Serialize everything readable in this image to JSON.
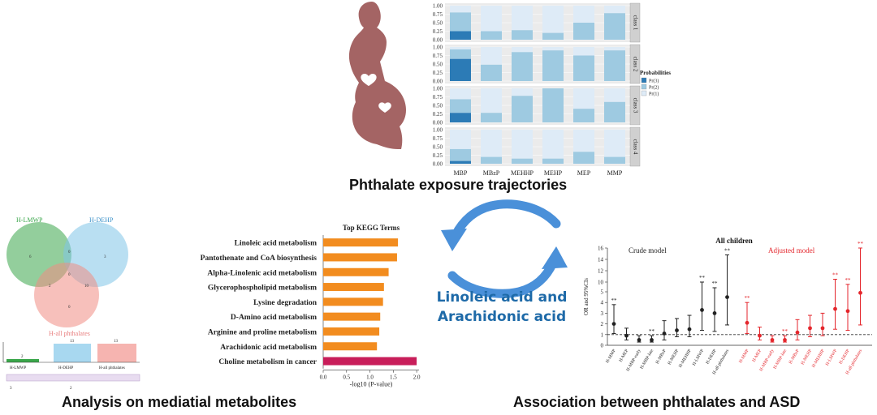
{
  "captions": {
    "top": "Phthalate exposure trajectories",
    "bottom_left": "Analysis on mediatial metabolites",
    "bottom_right": "Association between phthalates and ASD",
    "center": [
      "Linoleic acid and",
      "Arachidonic acid"
    ]
  },
  "colors": {
    "pregnant": "#a46464",
    "pr3": "#2c7bb6",
    "pr2": "#9ecae1",
    "pr1": "#deebf7",
    "kegg_bar": "#f28c1f",
    "kegg_highlight": "#c81e5a",
    "arrow": "#4a90d9",
    "crude": "#222222",
    "adjusted": "#e4262c",
    "venn_green": "#3aa64a",
    "venn_blue": "#7fc4e8",
    "venn_red": "#f08c84"
  },
  "trajectory_chart": {
    "type": "bar",
    "categories": [
      "MBP",
      "MBzP",
      "MEHHP",
      "MEHP",
      "MEP",
      "MMP"
    ],
    "y_ticks": [
      "1.00",
      "0.75",
      "0.50",
      "0.25",
      "0.00"
    ],
    "legend_title": "Probabilities",
    "legend": [
      "Pr(3)",
      "Pr(2)",
      "Pr(1)"
    ],
    "panels": [
      {
        "name": "class 1",
        "pr3": [
          0.25,
          0,
          0,
          0,
          0,
          0
        ],
        "pr2": [
          0.55,
          0.25,
          0.28,
          0.2,
          0.5,
          0.78
        ]
      },
      {
        "name": "class 2",
        "pr3": [
          0.65,
          0,
          0,
          0,
          0,
          0
        ],
        "pr2": [
          0.28,
          0.48,
          0.85,
          0.9,
          0.75,
          0.9
        ]
      },
      {
        "name": "class 3",
        "pr3": [
          0.28,
          0,
          0,
          0,
          0,
          0
        ],
        "pr2": [
          0.4,
          0.28,
          0.78,
          1.0,
          0.4,
          0.6
        ]
      },
      {
        "name": "class 4",
        "pr3": [
          0.08,
          0,
          0,
          0,
          0,
          0
        ],
        "pr2": [
          0.35,
          0.2,
          0.15,
          0.15,
          0.35,
          0.2
        ]
      }
    ]
  },
  "venn": {
    "sets": [
      "H-LMWP",
      "H-DEHP",
      "H-all phthalates"
    ],
    "region_values": [
      "6",
      "0",
      "3",
      "0",
      "2",
      "10",
      "0"
    ],
    "upset_values": [
      "2",
      "13",
      "13"
    ],
    "upset_labels": [
      "H-LMWP",
      "H-DEHP",
      "H-all phthalates"
    ],
    "upset_axis": [
      "3",
      "2"
    ]
  },
  "kegg_chart": {
    "type": "bar",
    "title": "Top KEGG Terms",
    "categories": [
      "Linoleic acid metabolism",
      "Pantothenate and CoA biosynthesis",
      "Alpha-Linolenic acid metabolism",
      "Glycerophospholipid metabolism",
      "Lysine degradation",
      "D-Amino acid metabolism",
      "Arginine and proline metabolism",
      "Arachidonic acid metabolism",
      "Choline metabolism in cancer"
    ],
    "values": [
      1.6,
      1.58,
      1.4,
      1.3,
      1.28,
      1.22,
      1.2,
      1.15,
      2.0
    ],
    "xlabel": "-log10 (P-value)",
    "x_ticks": [
      "0.0",
      "0.5",
      "1.0",
      "1.5",
      "2.0"
    ],
    "xlim": [
      0,
      2.05
    ]
  },
  "or_chart": {
    "type": "scatter",
    "title": "All children",
    "crude_label": "Crude model",
    "adjusted_label": "Adjusted model",
    "ylabel": "OR and 95%CIs",
    "y_ticks": [
      "16",
      "14",
      "12",
      "10",
      "5",
      "4",
      "3",
      "2",
      "1",
      "0"
    ],
    "categories": [
      "H-MMP",
      "H-MEP",
      "H-MBP-early",
      "H-MBP-late",
      "H-MBzP",
      "H-MEHP",
      "H-MEHHP",
      "H-LMWP",
      "H-DEHP",
      "H-all phthalates"
    ],
    "crude": {
      "or": [
        2.0,
        0.9,
        0.5,
        0.5,
        1.1,
        1.4,
        1.5,
        3.3,
        3.0,
        4.5
      ],
      "low": [
        1.1,
        0.5,
        0.3,
        0.3,
        0.5,
        0.8,
        0.8,
        1.4,
        1.3,
        1.9
      ],
      "high": [
        3.8,
        1.6,
        0.9,
        0.9,
        2.3,
        2.5,
        2.8,
        10.0,
        9.0,
        14.8
      ],
      "sig": [
        "**",
        "",
        "",
        "**",
        "",
        "",
        "",
        "**",
        "**",
        "**"
      ]
    },
    "adjusted": {
      "or": [
        2.1,
        0.9,
        0.5,
        0.5,
        1.2,
        1.6,
        1.6,
        3.4,
        3.2,
        4.9
      ],
      "low": [
        1.1,
        0.5,
        0.3,
        0.3,
        0.5,
        0.8,
        0.9,
        1.5,
        1.4,
        1.9
      ],
      "high": [
        4.0,
        1.7,
        0.9,
        0.9,
        2.4,
        2.8,
        3.0,
        10.5,
        9.6,
        16.0
      ],
      "sig": [
        "**",
        "",
        "",
        "**",
        "",
        "",
        "",
        "**",
        "**",
        "**"
      ]
    }
  }
}
